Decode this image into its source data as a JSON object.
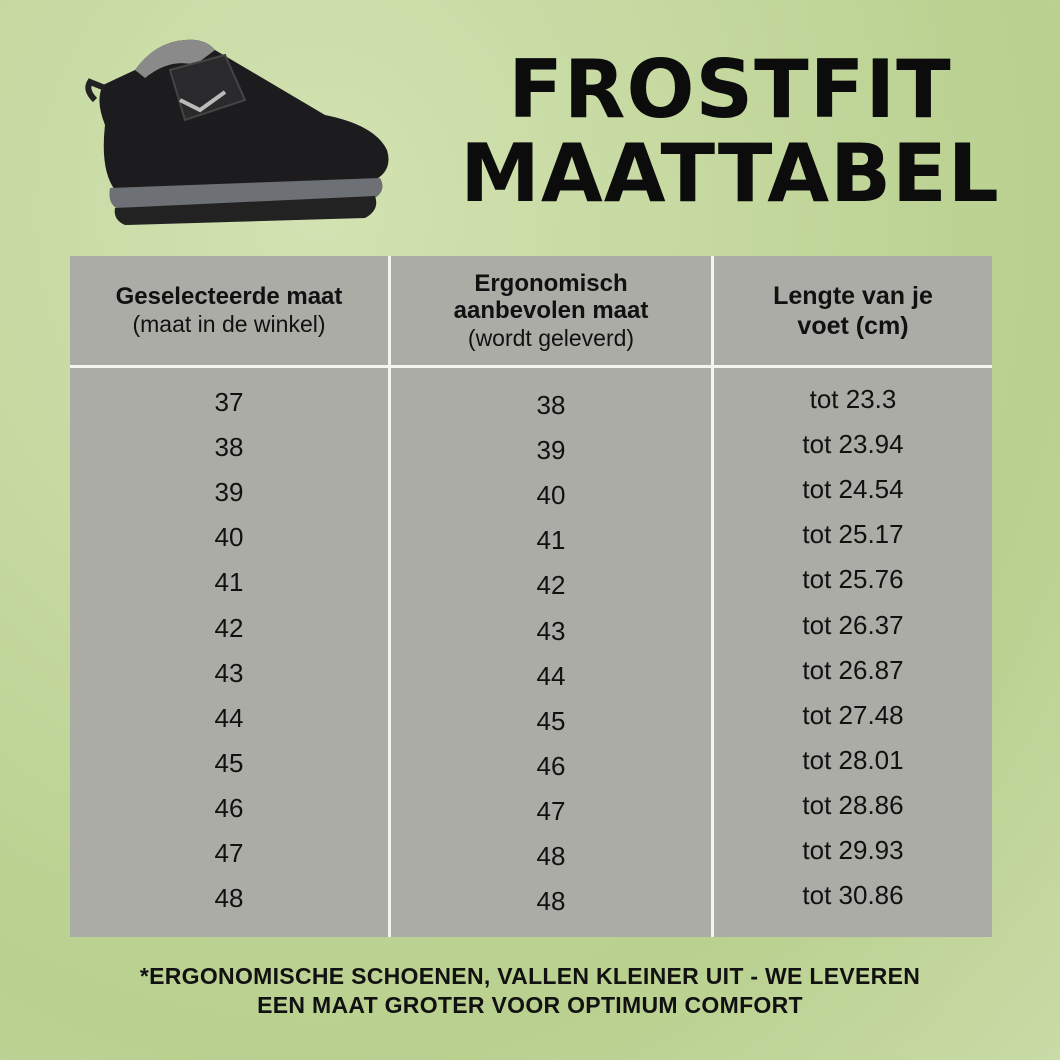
{
  "title": {
    "line1": "FROSTFIT",
    "line2": "MAATTABEL"
  },
  "table": {
    "headers": [
      {
        "bold": "Geselecteerde maat",
        "normal": "(maat in de winkel)"
      },
      {
        "bold": "Ergonomisch aanbevolen maat",
        "normal": "(wordt geleverd)"
      },
      {
        "bold": "Lengte van je voet (cm)",
        "normal": ""
      }
    ],
    "selected": [
      "37",
      "38",
      "39",
      "40",
      "41",
      "42",
      "43",
      "44",
      "45",
      "46",
      "47",
      "48"
    ],
    "recommended": [
      "38",
      "39",
      "40",
      "41",
      "42",
      "43",
      "44",
      "45",
      "46",
      "47",
      "48",
      "48"
    ],
    "length": [
      "tot 23.3",
      "tot 23.94",
      "tot 24.54",
      "tot 25.17",
      "tot 25.76",
      "tot 26.37",
      "tot 26.87",
      "tot 27.48",
      "tot 28.01",
      "tot 28.86",
      "tot 29.93",
      "tot 30.86"
    ]
  },
  "note": {
    "line1": "*ERGONOMISCHE SCHOENEN, VALLEN KLEINER UIT - WE LEVEREN",
    "line2": "EEN MAAT GROTER VOOR OPTIMUM COMFORT"
  },
  "colors": {
    "background": "#c4d89e",
    "table": "#abaca5",
    "divider": "#f4f4f0"
  }
}
